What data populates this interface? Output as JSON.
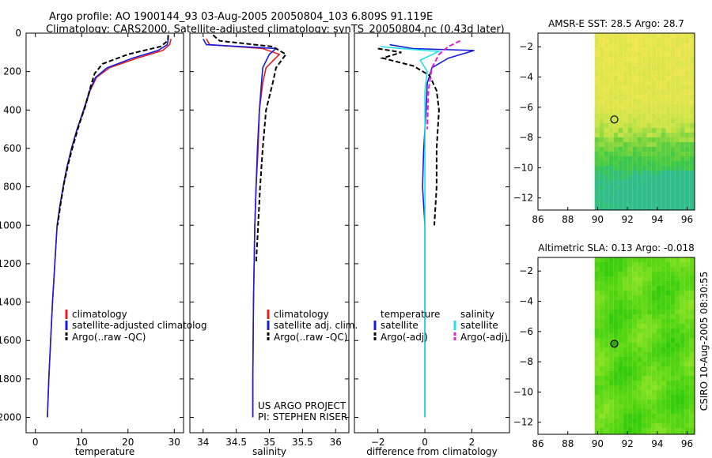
{
  "header": {
    "line1": "Argo profile: AO 1900144_93 03-Aug-2005 20050804_103 6.809S 91.119E",
    "line2": "Climatology: CARS2000. Satellite-adjusted climatology: synTS_20050804.nc (0.43d later)"
  },
  "side_credit": "CSIRO 10-Aug-2005 08:30:55",
  "colors": {
    "climatology": "#e02020",
    "satellite": "#1a1adf",
    "argo": "#000000",
    "satellite_salinity": "#22e0e8",
    "argo_adj_salinity": "#e020d0"
  },
  "chart_data": [
    {
      "id": "temperature",
      "type": "line",
      "xlabel": "temperature",
      "ylabel": "",
      "xlim": [
        -2,
        32
      ],
      "ylim": [
        2080,
        0
      ],
      "y_inverted": true,
      "xticks": [
        0,
        10,
        20,
        30
      ],
      "yticks": [
        0,
        200,
        400,
        600,
        800,
        1000,
        1200,
        1400,
        1600,
        1800,
        2000
      ],
      "legend": [
        "climatology",
        "satellite-adjusted climatolog",
        "Argo(..raw -QC)"
      ],
      "series": [
        {
          "name": "climatology",
          "style": "solid",
          "color_key": "climatology",
          "x": [
            29.3,
            29.0,
            27.5,
            22.0,
            16.0,
            13.2,
            11.8,
            10.5,
            9.0,
            7.8,
            6.8,
            6.0,
            5.3,
            4.7,
            4.2,
            3.7,
            3.3,
            2.9,
            2.6
          ],
          "y": [
            30,
            60,
            90,
            130,
            180,
            230,
            300,
            400,
            500,
            600,
            700,
            800,
            900,
            1000,
            1200,
            1400,
            1600,
            1800,
            2000
          ]
        },
        {
          "name": "satellite-adjusted climatolog",
          "style": "solid",
          "color_key": "satellite",
          "x": [
            28.7,
            28.5,
            26.5,
            21.0,
            15.5,
            13.0,
            11.7,
            10.4,
            9.0,
            7.8,
            6.8,
            6.0,
            5.3,
            4.7,
            4.2,
            3.7,
            3.3,
            2.9,
            2.6
          ],
          "y": [
            30,
            60,
            90,
            130,
            180,
            230,
            300,
            400,
            500,
            600,
            700,
            800,
            900,
            1000,
            1200,
            1400,
            1600,
            1800,
            2000
          ]
        },
        {
          "name": "Argo(..raw -QC)",
          "style": "dashed",
          "color_key": "argo",
          "x": [
            28.7,
            28.6,
            27.0,
            20.0,
            14.5,
            12.8,
            11.9,
            10.8,
            9.4,
            8.2,
            7.1,
            6.2,
            5.5,
            4.8
          ],
          "y": [
            10,
            40,
            70,
            110,
            160,
            210,
            280,
            380,
            480,
            580,
            680,
            780,
            880,
            1000
          ]
        }
      ]
    },
    {
      "id": "salinity",
      "type": "line",
      "xlabel": "salinity",
      "ylabel": "",
      "xlim": [
        33.8,
        36.2
      ],
      "ylim": [
        2080,
        0
      ],
      "y_inverted": true,
      "xticks": [
        34,
        34.5,
        35,
        35.5,
        36
      ],
      "legend": [
        "climatology",
        "satellite adj. clim.",
        "Argo(..raw -QC)"
      ],
      "annotations": [
        "US ARGO PROJECT",
        "PI: STEPHEN RISER"
      ],
      "series": [
        {
          "name": "climatology",
          "style": "solid",
          "color_key": "climatology",
          "x": [
            34.05,
            34.1,
            34.9,
            35.15,
            34.95,
            34.9,
            34.85,
            34.83,
            34.8,
            34.78,
            34.76,
            34.75,
            34.75
          ],
          "y": [
            30,
            60,
            80,
            110,
            180,
            260,
            400,
            600,
            800,
            1000,
            1400,
            1800,
            2000
          ]
        },
        {
          "name": "satellite adj. clim.",
          "style": "solid",
          "color_key": "satellite",
          "x": [
            34.0,
            34.05,
            35.1,
            35.0,
            34.9,
            34.88,
            34.85,
            34.82,
            34.8,
            34.78,
            34.76,
            34.75,
            34.75
          ],
          "y": [
            30,
            60,
            80,
            110,
            180,
            260,
            400,
            600,
            800,
            1000,
            1400,
            1800,
            2000
          ]
        },
        {
          "name": "Argo(..raw -QC)",
          "style": "dashed",
          "color_key": "argo",
          "x": [
            34.15,
            34.25,
            35.05,
            35.25,
            35.1,
            35.05,
            34.95,
            34.9,
            34.86,
            34.83,
            34.8
          ],
          "y": [
            10,
            40,
            70,
            110,
            180,
            260,
            400,
            600,
            800,
            1000,
            1200
          ]
        }
      ]
    },
    {
      "id": "difference",
      "type": "line",
      "xlabel": "difference from climatology",
      "ylabel": "",
      "xlim": [
        -3,
        3.6
      ],
      "ylim": [
        2080,
        0
      ],
      "y_inverted": true,
      "xticks": [
        -2,
        0,
        2
      ],
      "legend": [
        "temperature",
        "satellite",
        "Argo(-adj)",
        "salinity",
        "satellite",
        "Argo(-adj)"
      ],
      "series": [
        {
          "name": "satellite",
          "group": "temperature",
          "style": "solid",
          "color_key": "satellite",
          "x": [
            -1.5,
            -0.5,
            2.1,
            1.0,
            0.3,
            0.1,
            0.05,
            -0.05,
            -0.1,
            0.0,
            0.0,
            0.0,
            0.0
          ],
          "y": [
            60,
            80,
            90,
            130,
            180,
            260,
            400,
            600,
            800,
            1000,
            1400,
            1800,
            2000
          ]
        },
        {
          "name": "Argo(-adj)",
          "group": "temperature",
          "style": "dashed",
          "color_key": "argo",
          "x": [
            -2.0,
            -1.0,
            -1.8,
            -0.5,
            0.2,
            0.5,
            0.6,
            0.5,
            0.5,
            0.4
          ],
          "y": [
            80,
            100,
            130,
            170,
            220,
            300,
            400,
            600,
            800,
            1000
          ]
        },
        {
          "name": "satellite",
          "group": "salinity",
          "style": "solid",
          "color_key": "satellite_salinity",
          "x": [
            -1.9,
            -0.5,
            0.6,
            -0.2,
            0.1,
            0.0,
            0.0,
            0.0,
            0.0,
            0.0
          ],
          "y": [
            70,
            85,
            95,
            140,
            200,
            300,
            500,
            800,
            1200,
            2000
          ]
        },
        {
          "name": "Argo(-adj)",
          "group": "salinity",
          "style": "dashed",
          "color_key": "argo_adj_salinity",
          "x": [
            1.5,
            1.0,
            0.6,
            0.3,
            0.15,
            0.1
          ],
          "y": [
            40,
            70,
            110,
            180,
            300,
            500
          ]
        }
      ]
    },
    {
      "id": "amsr-sst-map",
      "type": "heatmap",
      "title": "AMSR-E SST: 28.5 Argo: 28.7",
      "xlim": [
        86,
        96.5
      ],
      "ylim": [
        -12.8,
        -1.1
      ],
      "xticks": [
        86,
        88,
        90,
        92,
        94,
        96
      ],
      "yticks": [
        -2,
        -4,
        -6,
        -8,
        -10,
        -12
      ],
      "data_region_x": [
        89.8,
        96.5
      ],
      "argo_position": [
        91.119,
        -6.809
      ]
    },
    {
      "id": "altimetric-sla-map",
      "type": "heatmap",
      "title": "Altimetric SLA: 0.13 Argo: -0.018",
      "xlim": [
        86,
        96.5
      ],
      "ylim": [
        -12.8,
        -1.1
      ],
      "xticks": [
        86,
        88,
        90,
        92,
        94,
        96
      ],
      "yticks": [
        -2,
        -4,
        -6,
        -8,
        -10,
        -12
      ],
      "data_region_x": [
        89.8,
        96.5
      ],
      "argo_position": [
        91.119,
        -6.809
      ]
    }
  ]
}
